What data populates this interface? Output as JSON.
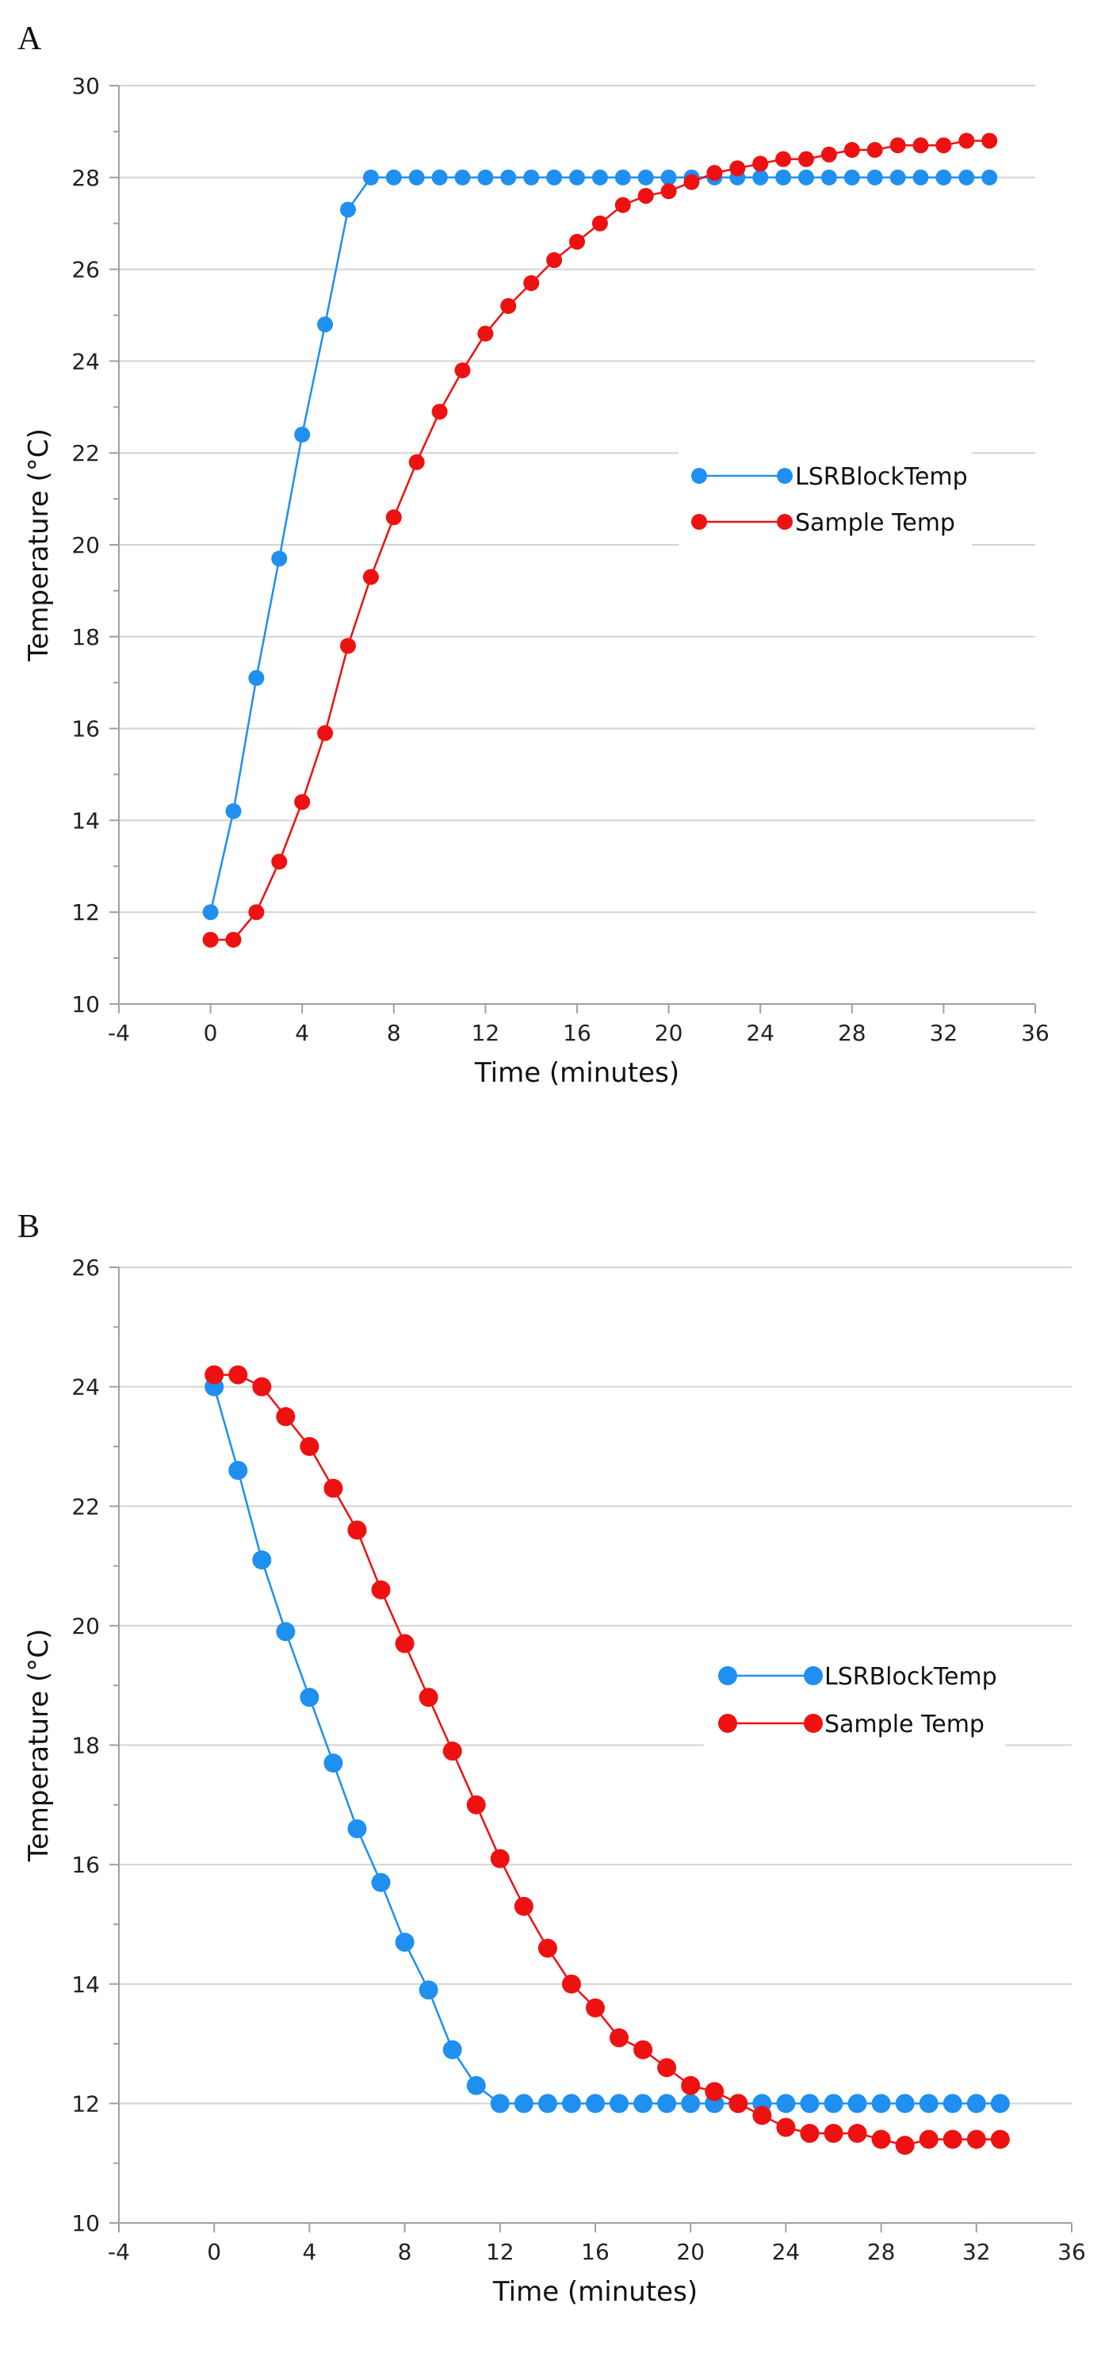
{
  "chart_data": [
    {
      "panel": "A",
      "type": "line",
      "xlabel": "Time (minutes)",
      "ylabel": "Temperature (°C)",
      "xlim": [
        -4,
        36
      ],
      "ylim": [
        10,
        30
      ],
      "x_ticks": [
        -4,
        0,
        4,
        8,
        12,
        16,
        20,
        24,
        28,
        32,
        36
      ],
      "y_ticks": [
        10,
        12,
        14,
        16,
        18,
        20,
        22,
        24,
        26,
        28,
        30
      ],
      "grid": "horizontal",
      "legend_position": "center-right",
      "series": [
        {
          "name": "LSRBlockTemp",
          "color": "#1f8ff0",
          "x": [
            0,
            1,
            2,
            3,
            4,
            5,
            6,
            7,
            8,
            9,
            10,
            11,
            12,
            13,
            14,
            15,
            16,
            17,
            18,
            19,
            20,
            21,
            22,
            23,
            24,
            25,
            26,
            27,
            28,
            29,
            30,
            31,
            32,
            33,
            34
          ],
          "values": [
            12,
            14.2,
            17.1,
            19.7,
            22.4,
            24.8,
            27.3,
            28,
            28,
            28,
            28,
            28,
            28,
            28,
            28,
            28,
            28,
            28,
            28,
            28,
            28,
            28,
            28,
            28,
            28,
            28,
            28,
            28,
            28,
            28,
            28,
            28,
            28,
            28,
            28
          ]
        },
        {
          "name": "Sample Temp",
          "color": "#ee1111",
          "x": [
            0,
            1,
            2,
            3,
            4,
            5,
            6,
            7,
            8,
            9,
            10,
            11,
            12,
            13,
            14,
            15,
            16,
            17,
            18,
            19,
            20,
            21,
            22,
            23,
            24,
            25,
            26,
            27,
            28,
            29,
            30,
            31,
            32,
            33,
            34
          ],
          "values": [
            11.4,
            11.4,
            12,
            13.1,
            14.4,
            15.9,
            17.8,
            19.3,
            20.6,
            21.8,
            22.9,
            23.8,
            24.6,
            25.2,
            25.7,
            26.2,
            26.6,
            27,
            27.4,
            27.6,
            27.7,
            27.9,
            28.1,
            28.2,
            28.3,
            28.4,
            28.4,
            28.5,
            28.6,
            28.6,
            28.7,
            28.7,
            28.7,
            28.8,
            28.8
          ]
        }
      ]
    },
    {
      "panel": "B",
      "type": "line",
      "xlabel": "Time (minutes)",
      "ylabel": "Temperature (°C)",
      "xlim": [
        -4,
        36
      ],
      "ylim": [
        10,
        26
      ],
      "x_ticks": [
        -4,
        0,
        4,
        8,
        12,
        16,
        20,
        24,
        28,
        32,
        36
      ],
      "y_ticks": [
        10,
        12,
        14,
        16,
        18,
        20,
        22,
        24,
        26
      ],
      "grid": "horizontal",
      "legend_position": "center-right",
      "series": [
        {
          "name": "LSRBlockTemp",
          "color": "#1f8ff0",
          "x": [
            0,
            1,
            2,
            3,
            4,
            5,
            6,
            7,
            8,
            9,
            10,
            11,
            12,
            13,
            14,
            15,
            16,
            17,
            18,
            19,
            20,
            21,
            22,
            23,
            24,
            25,
            26,
            27,
            28,
            29,
            30,
            31,
            32,
            33
          ],
          "values": [
            24,
            22.6,
            21.1,
            19.9,
            18.8,
            17.7,
            16.6,
            15.7,
            14.7,
            13.9,
            12.9,
            12.3,
            12,
            12,
            12,
            12,
            12,
            12,
            12,
            12,
            12,
            12,
            12,
            12,
            12,
            12,
            12,
            12,
            12,
            12,
            12,
            12,
            12,
            12
          ]
        },
        {
          "name": "Sample Temp",
          "color": "#ee1111",
          "x": [
            0,
            1,
            2,
            3,
            4,
            5,
            6,
            7,
            8,
            9,
            10,
            11,
            12,
            13,
            14,
            15,
            16,
            17,
            18,
            19,
            20,
            21,
            22,
            23,
            24,
            25,
            26,
            27,
            28,
            29,
            30,
            31,
            32,
            33
          ],
          "values": [
            24.2,
            24.2,
            24,
            23.5,
            23,
            22.3,
            21.6,
            20.6,
            19.7,
            18.8,
            17.9,
            17,
            16.1,
            15.3,
            14.6,
            14,
            13.6,
            13.1,
            12.9,
            12.6,
            12.3,
            12.2,
            12,
            11.8,
            11.6,
            11.5,
            11.5,
            11.5,
            11.4,
            11.3,
            11.4,
            11.4,
            11.4,
            11.4
          ]
        }
      ]
    }
  ]
}
